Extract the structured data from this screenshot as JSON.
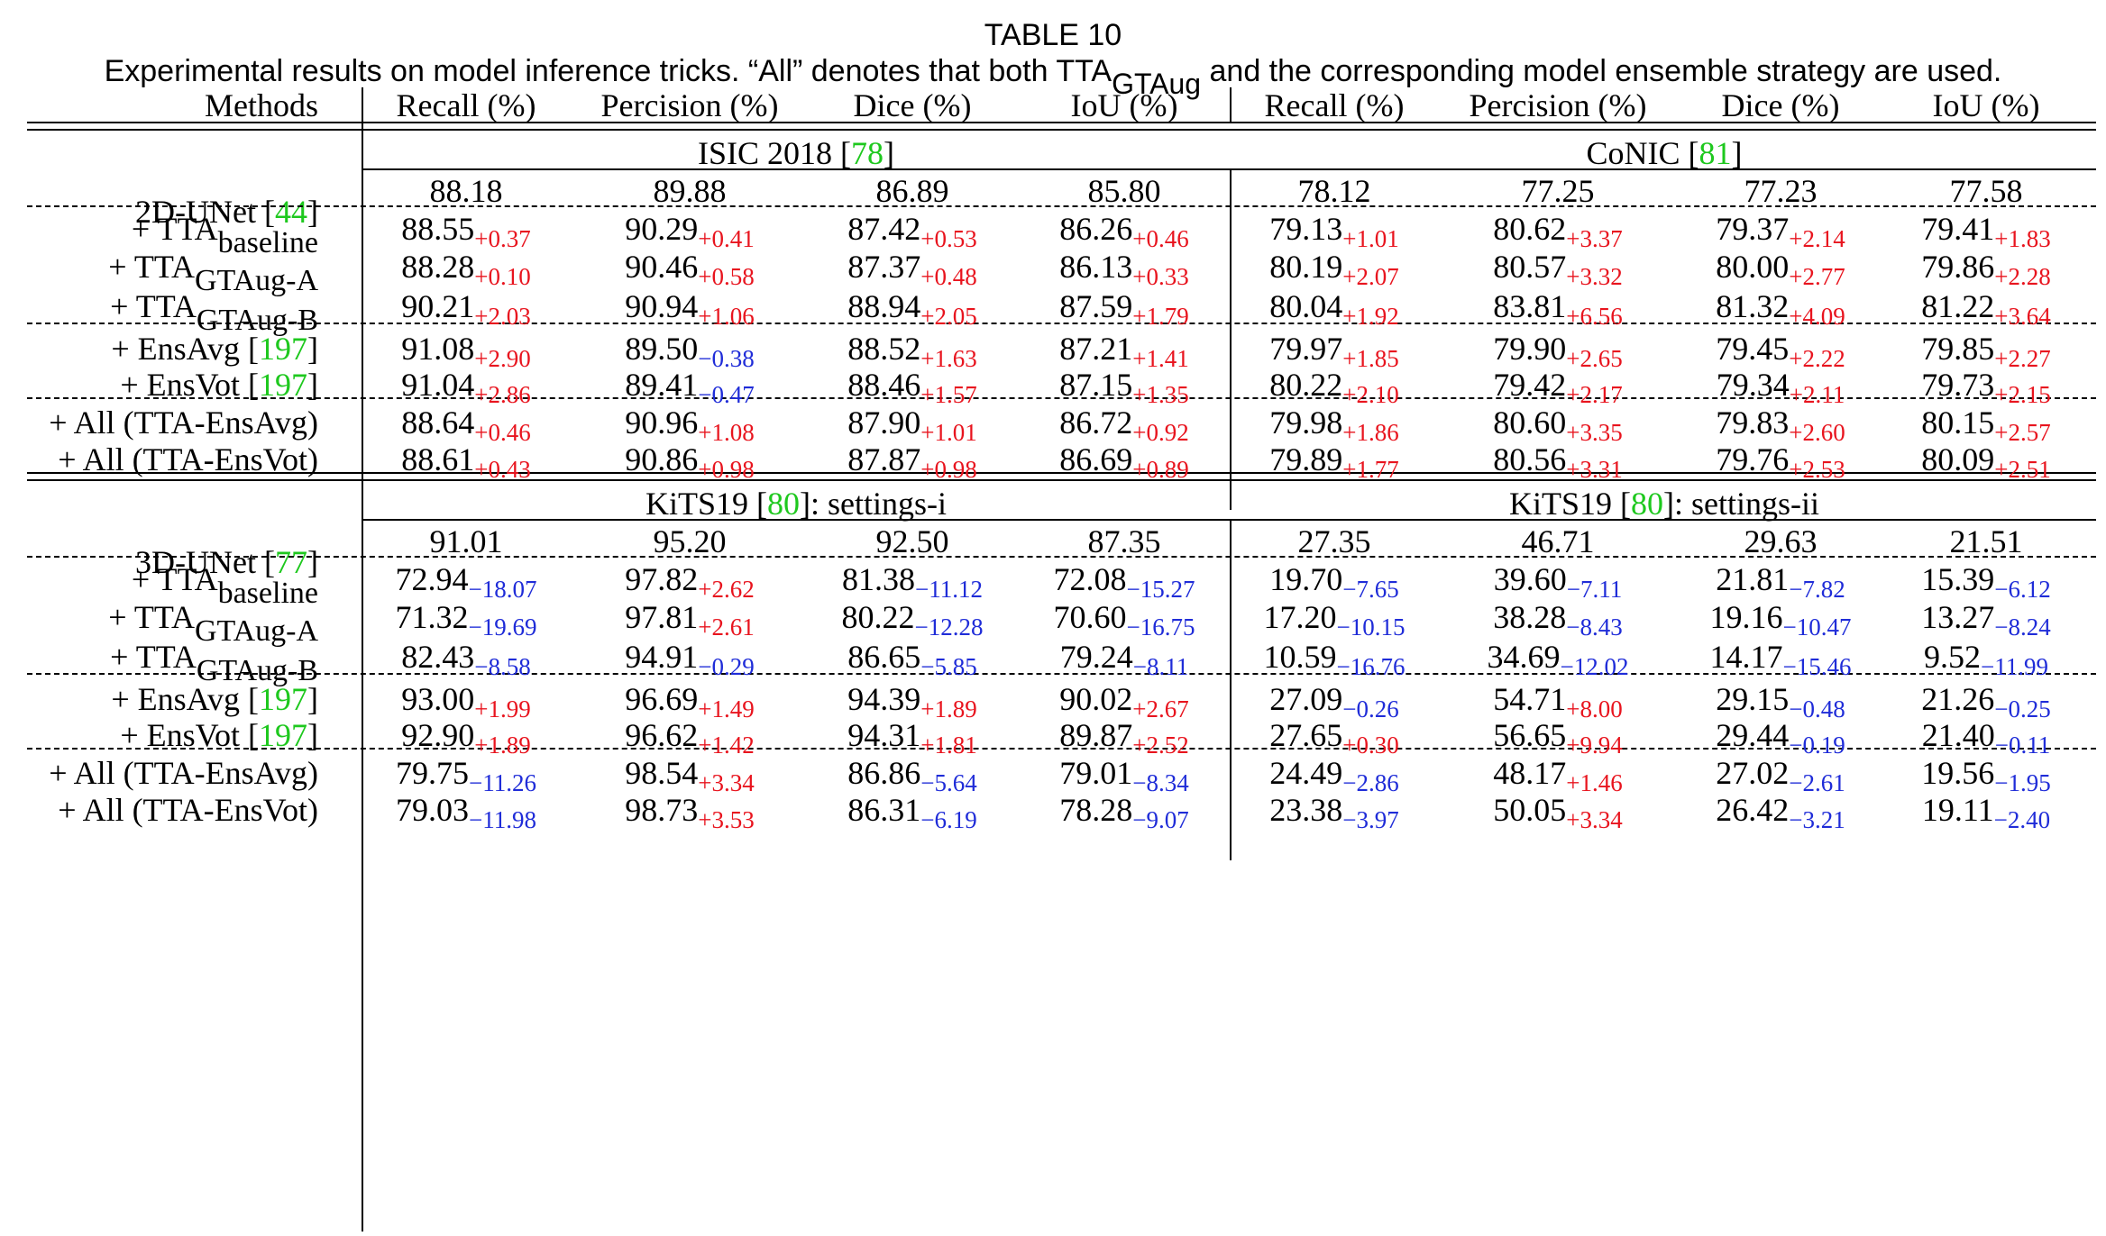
{
  "caption": {
    "label": "TABLE 10",
    "text_before": "Experimental results on model inference tricks. “All” denotes that both TTA",
    "text_sub": "GTAug",
    "text_after": " and the corresponding model ensemble strategy are used."
  },
  "columns": {
    "methods": "Methods",
    "headers": [
      "Recall (%)",
      "Percision (%)",
      "Dice (%)",
      "IoU (%)",
      "Recall (%)",
      "Percision (%)",
      "Dice (%)",
      "IoU (%)"
    ]
  },
  "sections": [
    {
      "model": "2D-UNet",
      "model_ref": "44",
      "dataset_left": {
        "name": "ISIC 2018 [",
        "ref": "78",
        "suffix": "]"
      },
      "dataset_right": {
        "name": "CoNIC [",
        "ref": "81",
        "suffix": "]"
      },
      "baseline": [
        "88.18",
        "89.88",
        "86.89",
        "85.80",
        "78.12",
        "77.25",
        "77.23",
        "77.58"
      ],
      "rows": [
        {
          "label": "+ TTA",
          "sub": "baseline",
          "ref": "",
          "values": [
            "88.55",
            "90.29",
            "87.42",
            "86.26",
            "79.13",
            "80.62",
            "79.37",
            "79.41"
          ],
          "deltas": [
            "+0.37",
            "+0.41",
            "+0.53",
            "+0.46",
            "+1.01",
            "+3.37",
            "+2.14",
            "+1.83"
          ]
        },
        {
          "label": "+ TTA",
          "sub": "GTAug-A",
          "ref": "",
          "values": [
            "88.28",
            "90.46",
            "87.37",
            "86.13",
            "80.19",
            "80.57",
            "80.00",
            "79.86"
          ],
          "deltas": [
            "+0.10",
            "+0.58",
            "+0.48",
            "+0.33",
            "+2.07",
            "+3.32",
            "+2.77",
            "+2.28"
          ]
        },
        {
          "label": "+ TTA",
          "sub": "GTAug-B",
          "ref": "",
          "values": [
            "90.21",
            "90.94",
            "88.94",
            "87.59",
            "80.04",
            "83.81",
            "81.32",
            "81.22"
          ],
          "deltas": [
            "+2.03",
            "+1.06",
            "+2.05",
            "+1.79",
            "+1.92",
            "+6.56",
            "+4.09",
            "+3.64"
          ]
        },
        {
          "label": "+ EnsAvg [",
          "sub": "",
          "ref": "197",
          "values": [
            "91.08",
            "89.50",
            "88.52",
            "87.21",
            "79.97",
            "79.90",
            "79.45",
            "79.85"
          ],
          "deltas": [
            "+2.90",
            "−0.38",
            "+1.63",
            "+1.41",
            "+1.85",
            "+2.65",
            "+2.22",
            "+2.27"
          ]
        },
        {
          "label": "+ EnsVot [",
          "sub": "",
          "ref": "197",
          "values": [
            "91.04",
            "89.41",
            "88.46",
            "87.15",
            "80.22",
            "79.42",
            "79.34",
            "79.73"
          ],
          "deltas": [
            "+2.86",
            "−0.47",
            "+1.57",
            "+1.35",
            "+2.10",
            "+2.17",
            "+2.11",
            "+2.15"
          ]
        },
        {
          "label": "+ All (TTA-EnsAvg)",
          "sub": "",
          "ref": "",
          "values": [
            "88.64",
            "90.96",
            "87.90",
            "86.72",
            "79.98",
            "80.60",
            "79.83",
            "80.15"
          ],
          "deltas": [
            "+0.46",
            "+1.08",
            "+1.01",
            "+0.92",
            "+1.86",
            "+3.35",
            "+2.60",
            "+2.57"
          ]
        },
        {
          "label": "+ All (TTA-EnsVot)",
          "sub": "",
          "ref": "",
          "values": [
            "88.61",
            "90.86",
            "87.87",
            "86.69",
            "79.89",
            "80.56",
            "79.76",
            "80.09"
          ],
          "deltas": [
            "+0.43",
            "+0.98",
            "+0.98",
            "+0.89",
            "+1.77",
            "+3.31",
            "+2.53",
            "+2.51"
          ]
        }
      ]
    },
    {
      "model": "3D-UNet",
      "model_ref": "77",
      "dataset_left": {
        "name": "KiTS19 [",
        "ref": "80",
        "suffix": "]: settings-i"
      },
      "dataset_right": {
        "name": "KiTS19 [",
        "ref": "80",
        "suffix": "]: settings-ii"
      },
      "baseline": [
        "91.01",
        "95.20",
        "92.50",
        "87.35",
        "27.35",
        "46.71",
        "29.63",
        "21.51"
      ],
      "rows": [
        {
          "label": "+ TTA",
          "sub": "baseline",
          "ref": "",
          "values": [
            "72.94",
            "97.82",
            "81.38",
            "72.08",
            "19.70",
            "39.60",
            "21.81",
            "15.39"
          ],
          "deltas": [
            "−18.07",
            "+2.62",
            "−11.12",
            "−15.27",
            "−7.65",
            "−7.11",
            "−7.82",
            "−6.12"
          ]
        },
        {
          "label": "+ TTA",
          "sub": "GTAug-A",
          "ref": "",
          "values": [
            "71.32",
            "97.81",
            "80.22",
            "70.60",
            "17.20",
            "38.28",
            "19.16",
            "13.27"
          ],
          "deltas": [
            "−19.69",
            "+2.61",
            "−12.28",
            "−16.75",
            "−10.15",
            "−8.43",
            "−10.47",
            "−8.24"
          ]
        },
        {
          "label": "+ TTA",
          "sub": "GTAug-B",
          "ref": "",
          "values": [
            "82.43",
            "94.91",
            "86.65",
            "79.24",
            "10.59",
            "34.69",
            "14.17",
            "9.52"
          ],
          "deltas": [
            "−8.58",
            "−0.29",
            "−5.85",
            "−8.11",
            "−16.76",
            "−12.02",
            "−15.46",
            "−11.99"
          ]
        },
        {
          "label": "+ EnsAvg [",
          "sub": "",
          "ref": "197",
          "values": [
            "93.00",
            "96.69",
            "94.39",
            "90.02",
            "27.09",
            "54.71",
            "29.15",
            "21.26"
          ],
          "deltas": [
            "+1.99",
            "+1.49",
            "+1.89",
            "+2.67",
            "−0.26",
            "+8.00",
            "−0.48",
            "−0.25"
          ]
        },
        {
          "label": "+ EnsVot [",
          "sub": "",
          "ref": "197",
          "values": [
            "92.90",
            "96.62",
            "94.31",
            "89.87",
            "27.65",
            "56.65",
            "29.44",
            "21.40"
          ],
          "deltas": [
            "+1.89",
            "+1.42",
            "+1.81",
            "+2.52",
            "+0.30",
            "+9.94",
            "−0.19",
            "−0.11"
          ]
        },
        {
          "label": "+ All (TTA-EnsAvg)",
          "sub": "",
          "ref": "",
          "values": [
            "79.75",
            "98.54",
            "86.86",
            "79.01",
            "24.49",
            "48.17",
            "27.02",
            "19.56"
          ],
          "deltas": [
            "−11.26",
            "+3.34",
            "−5.64",
            "−8.34",
            "−2.86",
            "+1.46",
            "−2.61",
            "−1.95"
          ]
        },
        {
          "label": "+ All (TTA-EnsVot)",
          "sub": "",
          "ref": "",
          "values": [
            "79.03",
            "98.73",
            "86.31",
            "78.28",
            "23.38",
            "50.05",
            "26.42",
            "19.11"
          ],
          "deltas": [
            "−11.98",
            "+3.53",
            "−6.19",
            "−9.07",
            "−3.97",
            "+3.34",
            "−3.21",
            "−2.40"
          ]
        }
      ]
    }
  ]
}
